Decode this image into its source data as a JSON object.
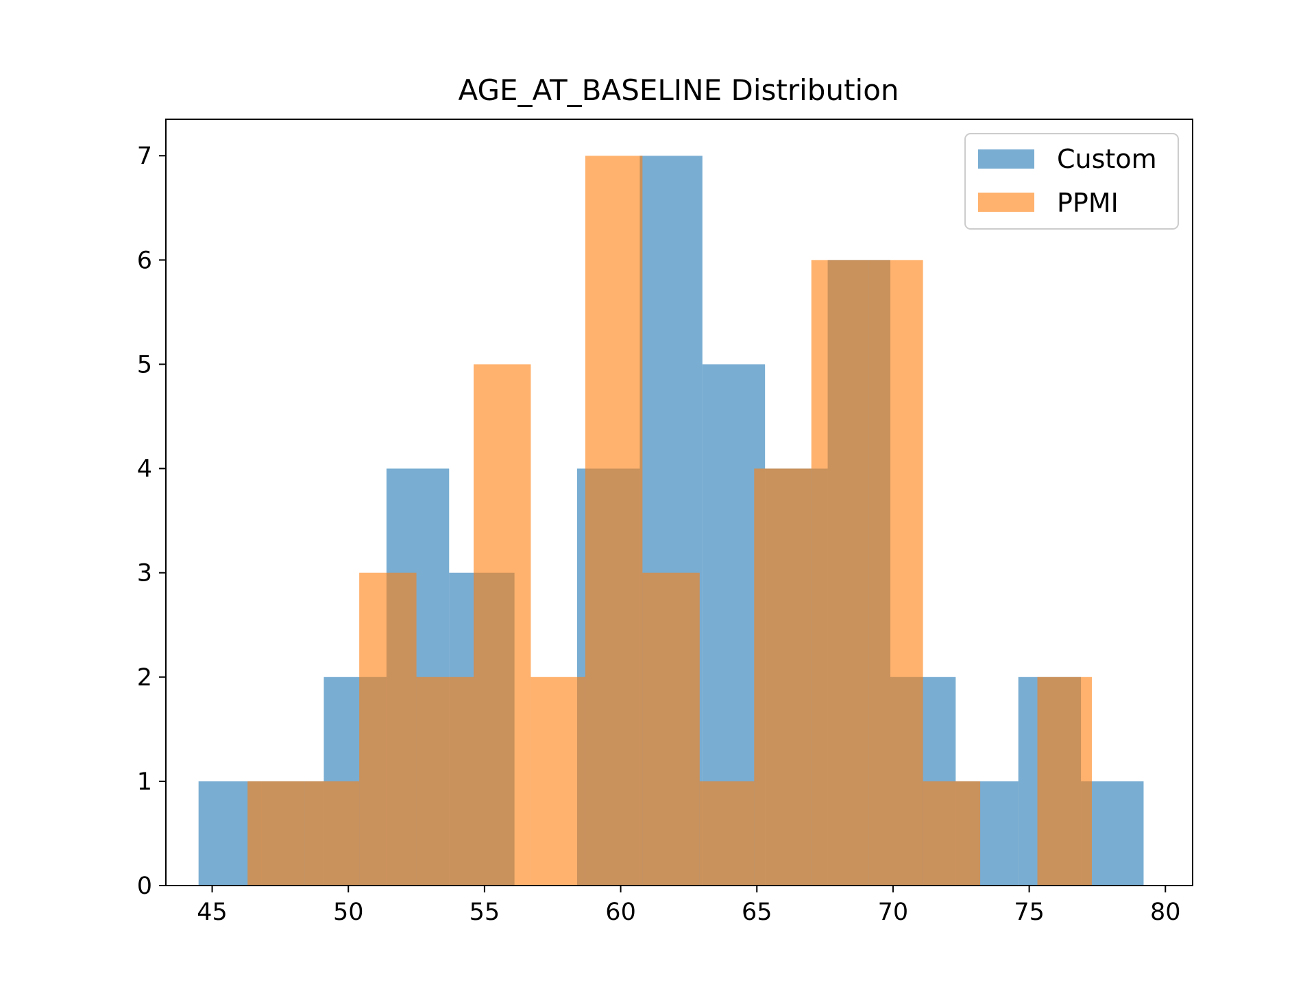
{
  "chart_data": {
    "type": "histogram",
    "title": "AGE_AT_BASELINE Distribution",
    "xlabel": "",
    "ylabel": "",
    "xlim": [
      43.3,
      81.0
    ],
    "ylim": [
      0,
      7.35
    ],
    "xticks": [
      45,
      50,
      55,
      60,
      65,
      70,
      75,
      80
    ],
    "yticks": [
      0,
      1,
      2,
      3,
      4,
      5,
      6,
      7
    ],
    "grid": false,
    "legend_position": "top-right",
    "series": [
      {
        "name": "Custom",
        "color": "#1f77b4",
        "alpha": 0.6,
        "bins": [
          {
            "x0": 44.5,
            "x1": 46.8,
            "count": 1
          },
          {
            "x0": 46.8,
            "x1": 49.1,
            "count": 1
          },
          {
            "x0": 49.1,
            "x1": 51.4,
            "count": 2
          },
          {
            "x0": 51.4,
            "x1": 53.7,
            "count": 4
          },
          {
            "x0": 53.7,
            "x1": 56.1,
            "count": 3
          },
          {
            "x0": 56.1,
            "x1": 58.4,
            "count": 0
          },
          {
            "x0": 58.4,
            "x1": 60.7,
            "count": 4
          },
          {
            "x0": 60.7,
            "x1": 63.0,
            "count": 7
          },
          {
            "x0": 63.0,
            "x1": 65.3,
            "count": 5
          },
          {
            "x0": 65.3,
            "x1": 67.6,
            "count": 4
          },
          {
            "x0": 67.6,
            "x1": 69.9,
            "count": 6
          },
          {
            "x0": 69.9,
            "x1": 72.3,
            "count": 2
          },
          {
            "x0": 72.3,
            "x1": 74.6,
            "count": 1
          },
          {
            "x0": 74.6,
            "x1": 76.9,
            "count": 2
          },
          {
            "x0": 76.9,
            "x1": 79.2,
            "count": 1
          }
        ]
      },
      {
        "name": "PPMI",
        "color": "#ff7f0e",
        "alpha": 0.6,
        "bins": [
          {
            "x0": 46.3,
            "x1": 48.4,
            "count": 1
          },
          {
            "x0": 48.4,
            "x1": 50.4,
            "count": 1
          },
          {
            "x0": 50.4,
            "x1": 52.5,
            "count": 3
          },
          {
            "x0": 52.5,
            "x1": 54.6,
            "count": 2
          },
          {
            "x0": 54.6,
            "x1": 56.7,
            "count": 5
          },
          {
            "x0": 56.7,
            "x1": 58.7,
            "count": 2
          },
          {
            "x0": 58.7,
            "x1": 60.8,
            "count": 7
          },
          {
            "x0": 60.8,
            "x1": 62.9,
            "count": 3
          },
          {
            "x0": 62.9,
            "x1": 64.9,
            "count": 1
          },
          {
            "x0": 64.9,
            "x1": 67.0,
            "count": 4
          },
          {
            "x0": 67.0,
            "x1": 69.1,
            "count": 6
          },
          {
            "x0": 69.1,
            "x1": 71.1,
            "count": 6
          },
          {
            "x0": 71.1,
            "x1": 73.2,
            "count": 1
          },
          {
            "x0": 73.2,
            "x1": 75.3,
            "count": 0
          },
          {
            "x0": 75.3,
            "x1": 77.3,
            "count": 2
          }
        ]
      }
    ]
  }
}
